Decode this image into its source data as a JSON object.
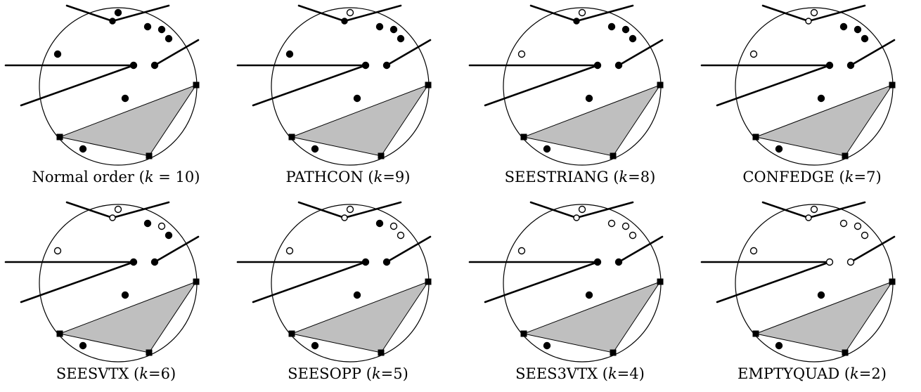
{
  "style": {
    "fill": "#bfbfbf",
    "stroke": "#000000",
    "background": "#ffffff"
  },
  "panels": [
    {
      "name": "Normal order",
      "k": "10",
      "eq": " = ",
      "open": []
    },
    {
      "name": "PATHCON",
      "k": "9",
      "eq": "=",
      "open": [
        "t"
      ]
    },
    {
      "name": "SEESTRIANG",
      "k": "8",
      "eq": "=",
      "open": [
        "t",
        "l"
      ]
    },
    {
      "name": "CONFEDGE",
      "k": "7",
      "eq": "=",
      "open": [
        "t",
        "l",
        "v"
      ]
    },
    {
      "name": "SEESVTX",
      "k": "6",
      "eq": "=",
      "open": [
        "t",
        "l",
        "v",
        "c2"
      ]
    },
    {
      "name": "SEESOPP",
      "k": "5",
      "eq": "=",
      "open": [
        "t",
        "l",
        "v",
        "c2",
        "c3"
      ]
    },
    {
      "name": "SEES3VTX",
      "k": "4",
      "eq": "=",
      "open": [
        "t",
        "l",
        "v",
        "c1",
        "c2",
        "c3"
      ]
    },
    {
      "name": "EMPTYQUAD",
      "k": "2",
      "eq": "=",
      "open": [
        "t",
        "l",
        "v",
        "c1",
        "c2",
        "c3",
        "a",
        "b"
      ]
    }
  ]
}
